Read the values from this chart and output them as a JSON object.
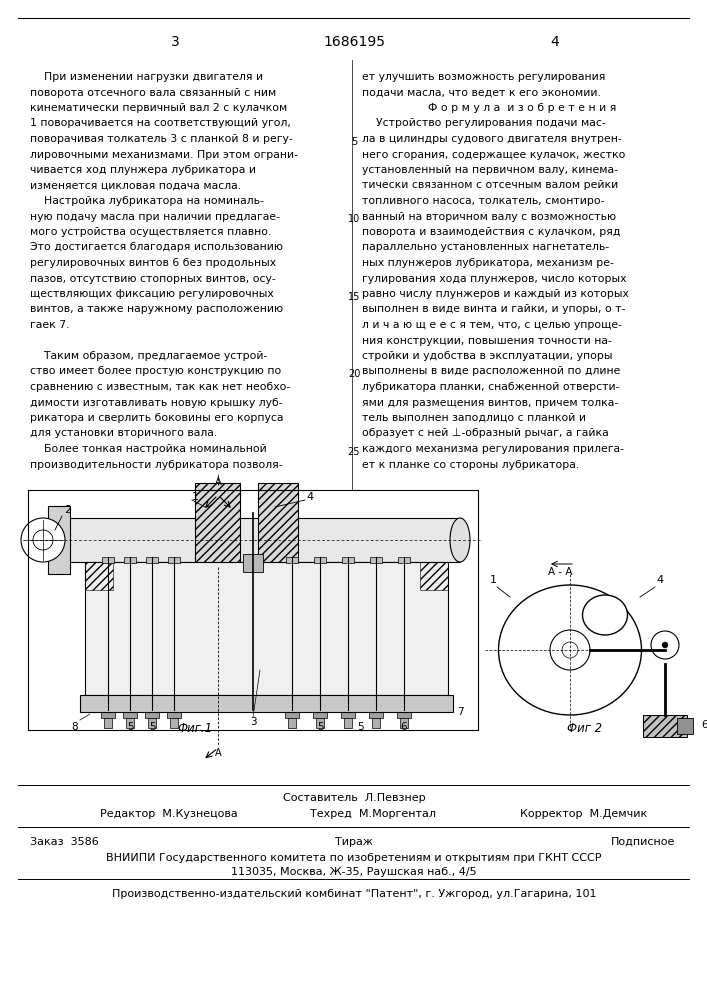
{
  "bg_color": "#ffffff",
  "page_width": 7.07,
  "page_height": 10.0,
  "header_page_left": "3",
  "header_patent": "1686195",
  "header_page_right": "4",
  "text_left": [
    "    При изменении нагрузки двигателя и",
    "поворота отсечного вала связанный с ним",
    "кинематически первичный вал 2 с кулачком",
    "1 поворачивается на соответствующий угол,",
    "поворачивая толкатель 3 с планкой 8 и регу-",
    "лировочными механизмами. При этом ограни-",
    "чивается ход плунжера лубрикатора и",
    "изменяется цикловая подача масла.",
    "    Настройка лубрикатора на номиналь-",
    "ную подачу масла при наличии предлагае-",
    "мого устройства осуществляется плавно.",
    "Это достигается благодаря использованию",
    "регулировочных винтов 6 без продольных",
    "пазов, отсутствию стопорных винтов, осу-",
    "ществляющих фиксацию регулировочных",
    "винтов, а также наружному расположению",
    "гаек 7.",
    "",
    "    Таким образом, предлагаемое устрой-",
    "ство имеет более простую конструкцию по",
    "сравнению с известным, так как нет необхо-",
    "димости изготавливать новую крышку луб-",
    "рикатора и сверлить боковины его корпуса",
    "для установки вторичного вала.",
    "    Более тонкая настройка номинальной",
    "производительности лубрикатора позволя-"
  ],
  "text_right": [
    "ет улучшить возможность регулирования",
    "подачи масла, что ведет к его экономии.",
    "Ф о р м у л а  и з о б р е т е н и я",
    "    Устройство регулирования подачи мас-",
    "ла в цилиндры судового двигателя внутрен-",
    "него сгорания, содержащее кулачок, жестко",
    "установленный на первичном валу, кинема-",
    "тически связанном с отсечным валом рейки",
    "топливного насоса, толкатель, смонтиро-",
    "ванный на вторичном валу с возможностью",
    "поворота и взаимодействия с кулачком, ряд",
    "параллельно установленных нагнетатель-",
    "ных плунжеров лубрикатора, механизм ре-",
    "гулирования хода плунжеров, число которых",
    "равно числу плунжеров и каждый из которых",
    "выполнен в виде винта и гайки, и упоры, о т-",
    "л и ч а ю щ е е с я тем, что, с целью упроще-",
    "ния конструкции, повышения точности на-",
    "стройки и удобства в эксплуатации, упоры",
    "выполнены в виде расположенной по длине",
    "лубрикатора планки, снабженной отверсти-",
    "ями для размещения винтов, причем толка-",
    "тель выполнен заподлицо с планкой и",
    "образует с ней ⊥-образный рычаг, а гайка",
    "каждого механизма регулирования прилега-",
    "ет к планке со стороны лубрикатора."
  ],
  "footer_composer_label": "Составитель  Л.Певзнер",
  "footer_editor_label": "Редактор  М.Кузнецова",
  "footer_techred_label": "Техред  М.Моргентал",
  "footer_corrector_label": "Корректор  М.Демчик",
  "footer_order": "Заказ  3586",
  "footer_tirazh": "Тираж",
  "footer_podpisnoe": "Подписное",
  "footer_vniipи": "ВНИИПИ Государственного комитета по изобретениям и открытиям при ГКНТ СССР",
  "footer_address": "113035, Москва, Ж-35, Раушская наб., 4/5",
  "footer_patent_plant": "Производственно-издательский комбинат \"Патент\", г. Ужгород, ул.Гагарина, 101"
}
